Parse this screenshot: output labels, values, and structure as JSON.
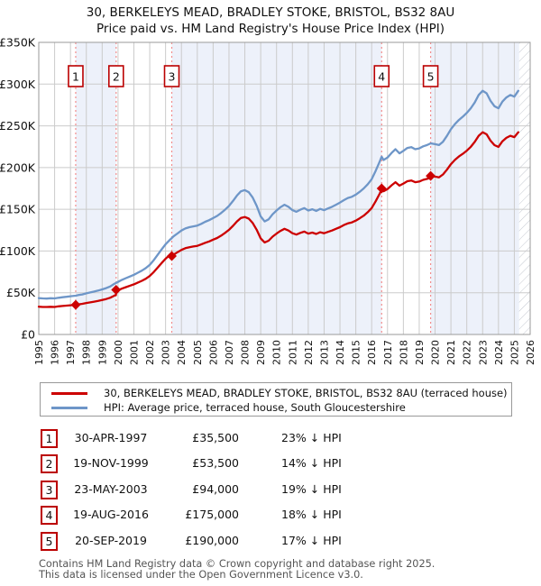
{
  "title": "30, BERKELEYS MEAD, BRADLEY STOKE, BRISTOL, BS32 8AU",
  "subtitle": "Price paid vs. HM Land Registry's House Price Index (HPI)",
  "chart_data": {
    "type": "line",
    "x_min": 1995,
    "x_max": 2026,
    "y_max": 350000,
    "grid": true,
    "x_ticks": [
      1995,
      1996,
      1997,
      1998,
      1999,
      2000,
      2001,
      2002,
      2003,
      2004,
      2005,
      2006,
      2007,
      2008,
      2009,
      2010,
      2011,
      2012,
      2013,
      2014,
      2015,
      2016,
      2017,
      2018,
      2019,
      2020,
      2021,
      2022,
      2023,
      2024,
      2025,
      2026
    ],
    "y_ticks": [
      {
        "v": 0,
        "label": "£0"
      },
      {
        "v": 50000,
        "label": "£50K"
      },
      {
        "v": 100000,
        "label": "£100K"
      },
      {
        "v": 150000,
        "label": "£150K"
      },
      {
        "v": 200000,
        "label": "£200K"
      },
      {
        "v": 250000,
        "label": "£250K"
      },
      {
        "v": 300000,
        "label": "£300K"
      },
      {
        "v": 350000,
        "label": "£350K"
      }
    ],
    "bands": [
      [
        1997.33,
        1999.88
      ],
      [
        2003.39,
        2016.63
      ],
      [
        2019.72,
        2025.3
      ]
    ],
    "hatch_start": 2025.3,
    "colors": {
      "property_line": "#cc0000",
      "hpi_line": "#6e96c8",
      "sale_dashed_line": "#f28c8c",
      "marker_box_border": "#bb0000",
      "band": "#edf1fa",
      "grid": "#cbcbcb",
      "plot_border": "#9a9a9a",
      "hatch": "#c4c8d0"
    },
    "sales": [
      {
        "n": "1",
        "year": 1997.33,
        "price": 35500
      },
      {
        "n": "2",
        "year": 1999.88,
        "price": 53500
      },
      {
        "n": "3",
        "year": 2003.39,
        "price": 94000
      },
      {
        "n": "4",
        "year": 2016.63,
        "price": 175000
      },
      {
        "n": "5",
        "year": 2019.72,
        "price": 190000
      }
    ],
    "series": [
      {
        "name": "30, BERKELEYS MEAD, BRADLEY STOKE, BRISTOL, BS32 8AU (terraced house)",
        "color": "#cc0000",
        "points": [
          [
            1995.0,
            33300
          ],
          [
            1995.25,
            33000
          ],
          [
            1995.5,
            32900
          ],
          [
            1995.75,
            33200
          ],
          [
            1996.0,
            33000
          ],
          [
            1996.25,
            33700
          ],
          [
            1996.5,
            34100
          ],
          [
            1996.75,
            34600
          ],
          [
            1997.0,
            35000
          ],
          [
            1997.33,
            35500
          ],
          [
            1997.5,
            36100
          ],
          [
            1997.75,
            36700
          ],
          [
            1998.0,
            37700
          ],
          [
            1998.25,
            38500
          ],
          [
            1998.5,
            39300
          ],
          [
            1998.75,
            40200
          ],
          [
            1999.0,
            41300
          ],
          [
            1999.25,
            42500
          ],
          [
            1999.5,
            44000
          ],
          [
            1999.75,
            46300
          ],
          [
            1999.87,
            47300
          ],
          [
            1999.88,
            53500
          ],
          [
            2000.0,
            52900
          ],
          [
            2000.25,
            55000
          ],
          [
            2000.5,
            56700
          ],
          [
            2000.75,
            58400
          ],
          [
            2001.0,
            60100
          ],
          [
            2001.25,
            62200
          ],
          [
            2001.5,
            64300
          ],
          [
            2001.75,
            66800
          ],
          [
            2002.0,
            70100
          ],
          [
            2002.25,
            74800
          ],
          [
            2002.5,
            80200
          ],
          [
            2002.75,
            85700
          ],
          [
            2003.0,
            90700
          ],
          [
            2003.25,
            94900
          ],
          [
            2003.39,
            94000
          ],
          [
            2003.5,
            95600
          ],
          [
            2003.75,
            98500
          ],
          [
            2004.0,
            101300
          ],
          [
            2004.25,
            103400
          ],
          [
            2004.5,
            104600
          ],
          [
            2004.75,
            105400
          ],
          [
            2005.0,
            106200
          ],
          [
            2005.25,
            107900
          ],
          [
            2005.5,
            109900
          ],
          [
            2005.75,
            111500
          ],
          [
            2006.0,
            113600
          ],
          [
            2006.25,
            115600
          ],
          [
            2006.5,
            118400
          ],
          [
            2006.75,
            121700
          ],
          [
            2007.0,
            125400
          ],
          [
            2007.25,
            130200
          ],
          [
            2007.5,
            135500
          ],
          [
            2007.75,
            139600
          ],
          [
            2008.0,
            140800
          ],
          [
            2008.25,
            138800
          ],
          [
            2008.5,
            133500
          ],
          [
            2008.75,
            125400
          ],
          [
            2009.0,
            115200
          ],
          [
            2009.25,
            110300
          ],
          [
            2009.5,
            112300
          ],
          [
            2009.75,
            117200
          ],
          [
            2010.0,
            120900
          ],
          [
            2010.25,
            124100
          ],
          [
            2010.5,
            126600
          ],
          [
            2010.75,
            124600
          ],
          [
            2011.0,
            121300
          ],
          [
            2011.25,
            119700
          ],
          [
            2011.5,
            121700
          ],
          [
            2011.75,
            123300
          ],
          [
            2012.0,
            120900
          ],
          [
            2012.25,
            122100
          ],
          [
            2012.5,
            120500
          ],
          [
            2012.75,
            122500
          ],
          [
            2013.0,
            121300
          ],
          [
            2013.25,
            122900
          ],
          [
            2013.5,
            124500
          ],
          [
            2013.75,
            126600
          ],
          [
            2014.0,
            128600
          ],
          [
            2014.25,
            131100
          ],
          [
            2014.5,
            133100
          ],
          [
            2014.75,
            134300
          ],
          [
            2015.0,
            136400
          ],
          [
            2015.25,
            139200
          ],
          [
            2015.5,
            142400
          ],
          [
            2015.75,
            146500
          ],
          [
            2016.0,
            151400
          ],
          [
            2016.25,
            159500
          ],
          [
            2016.5,
            168500
          ],
          [
            2016.62,
            173400
          ],
          [
            2016.63,
            175000
          ],
          [
            2016.75,
            171700
          ],
          [
            2017.0,
            174200
          ],
          [
            2017.25,
            178700
          ],
          [
            2017.5,
            182400
          ],
          [
            2017.75,
            178300
          ],
          [
            2018.0,
            180800
          ],
          [
            2018.25,
            183600
          ],
          [
            2018.5,
            184500
          ],
          [
            2018.75,
            182400
          ],
          [
            2019.0,
            183200
          ],
          [
            2019.25,
            185300
          ],
          [
            2019.5,
            186500
          ],
          [
            2019.71,
            188100
          ],
          [
            2019.72,
            190000
          ],
          [
            2020.0,
            189200
          ],
          [
            2020.25,
            188300
          ],
          [
            2020.5,
            191700
          ],
          [
            2020.75,
            197500
          ],
          [
            2021.0,
            204100
          ],
          [
            2021.25,
            209100
          ],
          [
            2021.5,
            213200
          ],
          [
            2021.75,
            216500
          ],
          [
            2022.0,
            220300
          ],
          [
            2022.25,
            224800
          ],
          [
            2022.5,
            230700
          ],
          [
            2022.75,
            238100
          ],
          [
            2023.0,
            242300
          ],
          [
            2023.25,
            239800
          ],
          [
            2023.5,
            232300
          ],
          [
            2023.75,
            226900
          ],
          [
            2024.0,
            224800
          ],
          [
            2024.25,
            231500
          ],
          [
            2024.5,
            235600
          ],
          [
            2024.75,
            238100
          ],
          [
            2025.0,
            236500
          ],
          [
            2025.25,
            242300
          ]
        ]
      },
      {
        "name": "HPI: Average price, terraced house, South Gloucestershire",
        "color": "#6e96c8",
        "points": [
          [
            1995.0,
            43500
          ],
          [
            1995.25,
            43200
          ],
          [
            1995.5,
            43000
          ],
          [
            1995.75,
            43400
          ],
          [
            1996.0,
            43200
          ],
          [
            1996.25,
            44000
          ],
          [
            1996.5,
            44600
          ],
          [
            1996.75,
            45200
          ],
          [
            1997.0,
            45800
          ],
          [
            1997.25,
            46300
          ],
          [
            1997.33,
            46500
          ],
          [
            1997.5,
            47200
          ],
          [
            1997.75,
            48000
          ],
          [
            1998.0,
            49300
          ],
          [
            1998.25,
            50300
          ],
          [
            1998.5,
            51400
          ],
          [
            1998.75,
            52600
          ],
          [
            1999.0,
            54000
          ],
          [
            1999.25,
            55500
          ],
          [
            1999.5,
            57500
          ],
          [
            1999.75,
            60500
          ],
          [
            1999.88,
            61800
          ],
          [
            2000.0,
            63000
          ],
          [
            2000.25,
            65500
          ],
          [
            2000.5,
            67500
          ],
          [
            2000.75,
            69500
          ],
          [
            2001.0,
            71500
          ],
          [
            2001.25,
            74000
          ],
          [
            2001.5,
            76500
          ],
          [
            2001.75,
            79500
          ],
          [
            2002.0,
            83500
          ],
          [
            2002.25,
            89000
          ],
          [
            2002.5,
            95500
          ],
          [
            2002.75,
            102000
          ],
          [
            2003.0,
            108000
          ],
          [
            2003.25,
            113000
          ],
          [
            2003.39,
            115500
          ],
          [
            2003.5,
            117500
          ],
          [
            2003.75,
            121000
          ],
          [
            2004.0,
            124500
          ],
          [
            2004.25,
            127000
          ],
          [
            2004.5,
            128500
          ],
          [
            2004.75,
            129500
          ],
          [
            2005.0,
            130500
          ],
          [
            2005.25,
            132500
          ],
          [
            2005.5,
            135000
          ],
          [
            2005.75,
            137000
          ],
          [
            2006.0,
            139500
          ],
          [
            2006.25,
            142000
          ],
          [
            2006.5,
            145500
          ],
          [
            2006.75,
            149500
          ],
          [
            2007.0,
            154000
          ],
          [
            2007.25,
            160000
          ],
          [
            2007.5,
            166500
          ],
          [
            2007.75,
            171500
          ],
          [
            2008.0,
            173000
          ],
          [
            2008.25,
            170500
          ],
          [
            2008.5,
            164000
          ],
          [
            2008.75,
            154000
          ],
          [
            2009.0,
            141500
          ],
          [
            2009.25,
            135500
          ],
          [
            2009.5,
            138000
          ],
          [
            2009.75,
            144000
          ],
          [
            2010.0,
            148500
          ],
          [
            2010.25,
            152500
          ],
          [
            2010.5,
            155500
          ],
          [
            2010.75,
            153000
          ],
          [
            2011.0,
            149000
          ],
          [
            2011.25,
            147000
          ],
          [
            2011.5,
            149500
          ],
          [
            2011.75,
            151500
          ],
          [
            2012.0,
            148500
          ],
          [
            2012.25,
            150000
          ],
          [
            2012.5,
            148000
          ],
          [
            2012.75,
            150500
          ],
          [
            2013.0,
            149000
          ],
          [
            2013.25,
            151000
          ],
          [
            2013.5,
            153000
          ],
          [
            2013.75,
            155500
          ],
          [
            2014.0,
            158000
          ],
          [
            2014.25,
            161000
          ],
          [
            2014.5,
            163500
          ],
          [
            2014.75,
            165000
          ],
          [
            2015.0,
            167500
          ],
          [
            2015.25,
            171000
          ],
          [
            2015.5,
            175000
          ],
          [
            2015.75,
            180000
          ],
          [
            2016.0,
            186000
          ],
          [
            2016.25,
            196000
          ],
          [
            2016.5,
            207000
          ],
          [
            2016.63,
            213000
          ],
          [
            2016.75,
            209000
          ],
          [
            2017.0,
            212000
          ],
          [
            2017.25,
            217500
          ],
          [
            2017.5,
            222000
          ],
          [
            2017.75,
            217000
          ],
          [
            2018.0,
            220000
          ],
          [
            2018.25,
            223500
          ],
          [
            2018.5,
            224500
          ],
          [
            2018.75,
            222000
          ],
          [
            2019.0,
            223000
          ],
          [
            2019.25,
            225500
          ],
          [
            2019.5,
            227000
          ],
          [
            2019.72,
            229000
          ],
          [
            2020.0,
            228000
          ],
          [
            2020.25,
            227000
          ],
          [
            2020.5,
            231000
          ],
          [
            2020.75,
            238000
          ],
          [
            2021.0,
            246000
          ],
          [
            2021.25,
            252000
          ],
          [
            2021.5,
            257000
          ],
          [
            2021.75,
            261000
          ],
          [
            2022.0,
            265500
          ],
          [
            2022.25,
            271000
          ],
          [
            2022.5,
            278000
          ],
          [
            2022.75,
            287000
          ],
          [
            2023.0,
            292000
          ],
          [
            2023.25,
            289000
          ],
          [
            2023.5,
            280000
          ],
          [
            2023.75,
            273500
          ],
          [
            2024.0,
            271000
          ],
          [
            2024.25,
            279000
          ],
          [
            2024.5,
            284000
          ],
          [
            2024.75,
            287000
          ],
          [
            2025.0,
            285000
          ],
          [
            2025.25,
            292000
          ]
        ]
      }
    ]
  },
  "legend": {
    "items": [
      {
        "label": "30, BERKELEYS MEAD, BRADLEY STOKE, BRISTOL, BS32 8AU (terraced house)",
        "color": "#cc0000"
      },
      {
        "label": "HPI: Average price, terraced house, South Gloucestershire",
        "color": "#6e96c8"
      }
    ]
  },
  "table": {
    "rows": [
      {
        "num": "1",
        "date": "30-APR-1997",
        "price": "£35,500",
        "vs_hpi": "23% ↓ HPI"
      },
      {
        "num": "2",
        "date": "19-NOV-1999",
        "price": "£53,500",
        "vs_hpi": "14% ↓ HPI"
      },
      {
        "num": "3",
        "date": "23-MAY-2003",
        "price": "£94,000",
        "vs_hpi": "19% ↓ HPI"
      },
      {
        "num": "4",
        "date": "19-AUG-2016",
        "price": "£175,000",
        "vs_hpi": "18% ↓ HPI"
      },
      {
        "num": "5",
        "date": "20-SEP-2019",
        "price": "£190,000",
        "vs_hpi": "17% ↓ HPI"
      }
    ]
  },
  "footer": {
    "line1": "Contains HM Land Registry data © Crown copyright and database right 2025.",
    "line2": "This data is licensed under the Open Government Licence v3.0."
  }
}
